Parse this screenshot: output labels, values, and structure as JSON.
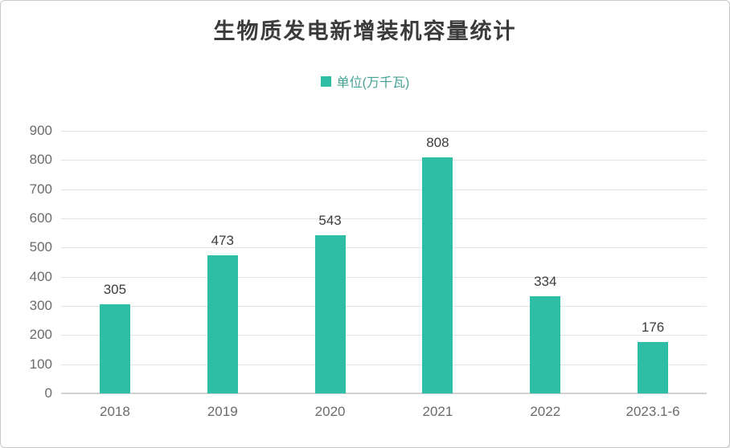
{
  "header": {
    "title": "生物质发电新增装机容量统计"
  },
  "legend": {
    "label": "单位(万千瓦)"
  },
  "colors": {
    "bar": "#2EBDA5",
    "gridline": "#E3E3E3",
    "baseline": "#D2D2D2",
    "title_text": "#3B3B3B",
    "legend_text": "#44A095",
    "axis_text": "#6B6B6B",
    "value_label_text": "#3D3D3D",
    "frame_border": "#C9C9C9"
  },
  "chart_data": {
    "type": "bar",
    "title": "生物质发电新增装机容量统计",
    "series_name": "单位(万千瓦)",
    "categories": [
      "2018",
      "2019",
      "2020",
      "2021",
      "2022",
      "2023.1-6"
    ],
    "values": [
      305,
      473,
      543,
      808,
      334,
      176
    ],
    "data_labels_shown": true,
    "xlabel": "",
    "ylabel": "",
    "ylim": [
      0,
      900
    ],
    "ytick_step": 100,
    "grid": true,
    "legend_position": "top-center",
    "bar_color": "#2EBDA5"
  }
}
